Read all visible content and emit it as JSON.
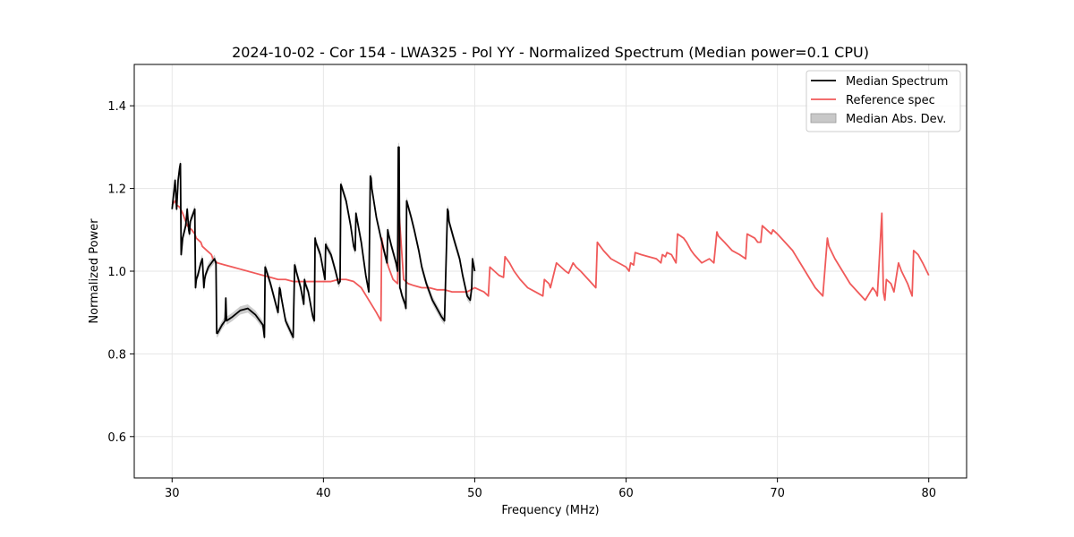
{
  "chart_data": {
    "type": "line",
    "title": "2024-10-02 - Cor 154 - LWA325 - Pol YY - Normalized Spectrum (Median power=0.1 CPU)",
    "xlabel": "Frequency (MHz)",
    "ylabel": "Normalized Power",
    "xlim": [
      27.5,
      82.5
    ],
    "ylim": [
      0.5,
      1.5
    ],
    "xticks": [
      30,
      40,
      50,
      60,
      70,
      80
    ],
    "yticks": [
      0.6,
      0.8,
      1.0,
      1.2,
      1.4
    ],
    "xtick_labels": [
      "30",
      "40",
      "50",
      "60",
      "70",
      "80"
    ],
    "ytick_labels": [
      "0.6",
      "0.8",
      "1.0",
      "1.2",
      "1.4"
    ],
    "grid": true,
    "legend_position": "top-right",
    "colors": {
      "median": "#000000",
      "reference": "#f05a5a",
      "mad": "#c8c8c8"
    },
    "series": [
      {
        "name": "Median Spectrum",
        "x": [
          30.0,
          30.2,
          30.3,
          30.4,
          30.5,
          30.55,
          30.6,
          30.7,
          30.9,
          31.0,
          31.1,
          31.15,
          31.2,
          31.3,
          31.5,
          31.55,
          31.6,
          31.7,
          31.9,
          32.0,
          32.1,
          32.15,
          32.2,
          32.4,
          32.6,
          32.8,
          32.9,
          32.95,
          33.0,
          33.3,
          33.5,
          33.55,
          33.6,
          34.0,
          34.5,
          35.0,
          35.5,
          36.0,
          36.1,
          36.15,
          36.2,
          36.5,
          37.0,
          37.1,
          37.15,
          37.2,
          37.5,
          38.0,
          38.1,
          38.15,
          38.2,
          38.5,
          38.7,
          38.75,
          38.8,
          39.0,
          39.3,
          39.4,
          39.45,
          39.5,
          39.8,
          40.0,
          40.1,
          40.15,
          40.2,
          40.5,
          40.8,
          41.0,
          41.1,
          41.15,
          41.2,
          41.5,
          41.8,
          42.0,
          42.1,
          42.15,
          42.2,
          42.5,
          42.8,
          43.0,
          43.1,
          43.15,
          43.2,
          43.5,
          43.8,
          44.0,
          44.2,
          44.25,
          44.3,
          44.5,
          44.8,
          44.9,
          44.95,
          45.0,
          45.05,
          45.1,
          45.2,
          45.4,
          45.45,
          45.5,
          45.8,
          46.0,
          46.3,
          46.5,
          46.8,
          47.0,
          47.2,
          47.5,
          47.8,
          48.0,
          48.2,
          48.25,
          48.3,
          48.6,
          49.0,
          49.2,
          49.5,
          49.7,
          49.8,
          49.85,
          49.9,
          50.0
        ],
        "values": [
          1.15,
          1.22,
          1.15,
          1.22,
          1.25,
          1.26,
          1.04,
          1.08,
          1.11,
          1.15,
          1.1,
          1.09,
          1.12,
          1.13,
          1.15,
          0.96,
          0.98,
          0.99,
          1.02,
          1.03,
          0.96,
          0.98,
          0.99,
          1.01,
          1.02,
          1.03,
          1.02,
          0.85,
          0.85,
          0.87,
          0.88,
          0.935,
          0.88,
          0.89,
          0.905,
          0.91,
          0.895,
          0.87,
          0.84,
          1.01,
          1.005,
          0.97,
          0.9,
          0.96,
          0.955,
          0.94,
          0.88,
          0.84,
          1.015,
          1.01,
          1.0,
          0.96,
          0.92,
          0.98,
          0.97,
          0.95,
          0.89,
          0.88,
          1.08,
          1.07,
          1.04,
          1.0,
          0.98,
          1.065,
          1.06,
          1.04,
          1.0,
          0.97,
          0.975,
          1.21,
          1.205,
          1.17,
          1.11,
          1.06,
          1.05,
          1.14,
          1.13,
          1.07,
          0.99,
          0.95,
          1.23,
          1.225,
          1.2,
          1.13,
          1.08,
          1.05,
          1.02,
          1.1,
          1.09,
          1.06,
          1.02,
          1.0,
          1.3,
          1.3,
          0.96,
          0.955,
          0.94,
          0.92,
          0.91,
          1.17,
          1.13,
          1.1,
          1.05,
          1.01,
          0.97,
          0.95,
          0.93,
          0.91,
          0.89,
          0.88,
          1.15,
          1.145,
          1.12,
          1.08,
          1.03,
          0.99,
          0.94,
          0.93,
          0.96,
          1.03,
          1.02,
          1.0
        ]
      },
      {
        "name": "Reference spec",
        "x": [
          30.0,
          30.2,
          30.3,
          30.5,
          30.7,
          30.9,
          31.0,
          31.3,
          31.5,
          31.6,
          31.9,
          32.0,
          32.3,
          32.6,
          32.7,
          33.0,
          33.5,
          34.0,
          34.5,
          35.0,
          35.5,
          36.0,
          36.5,
          37.0,
          37.5,
          38.0,
          38.5,
          39.0,
          39.5,
          40.0,
          40.5,
          41.0,
          41.5,
          42.0,
          42.5,
          43.0,
          43.5,
          43.8,
          43.85,
          44.0,
          44.3,
          44.6,
          44.9,
          45.0,
          45.3,
          45.6,
          46.0,
          46.5,
          47.0,
          47.5,
          48.0,
          48.5,
          49.0,
          49.5,
          50.0,
          50.3,
          50.6,
          50.9,
          51.0,
          51.3,
          51.6,
          51.9,
          52.0,
          52.3,
          52.6,
          53.0,
          53.5,
          54.0,
          54.5,
          54.6,
          54.9,
          55.0,
          55.4,
          55.7,
          56.0,
          56.2,
          56.5,
          56.7,
          57.0,
          57.5,
          58.0,
          58.1,
          58.5,
          59.0,
          59.5,
          60.0,
          60.2,
          60.3,
          60.5,
          60.6,
          61.0,
          61.5,
          62.0,
          62.3,
          62.4,
          62.6,
          62.7,
          63.0,
          63.3,
          63.4,
          63.8,
          64.0,
          64.3,
          64.5,
          65.0,
          65.5,
          65.8,
          66.0,
          66.1,
          66.5,
          67.0,
          67.5,
          67.9,
          68.0,
          68.5,
          68.7,
          68.9,
          69.0,
          69.3,
          69.6,
          69.7,
          70.0,
          70.5,
          71.0,
          71.5,
          72.0,
          72.5,
          73.0,
          73.3,
          73.4,
          73.8,
          74.3,
          74.8,
          75.3,
          75.8,
          76.3,
          76.5,
          76.6,
          76.9,
          77.0,
          77.1,
          77.2,
          77.5,
          77.7,
          78.0,
          78.2,
          78.6,
          78.9,
          79.0,
          79.3,
          79.6,
          80.0
        ],
        "values": [
          1.16,
          1.17,
          1.16,
          1.155,
          1.14,
          1.12,
          1.11,
          1.1,
          1.09,
          1.08,
          1.07,
          1.06,
          1.05,
          1.04,
          1.03,
          1.02,
          1.015,
          1.01,
          1.005,
          1.0,
          0.995,
          0.99,
          0.985,
          0.98,
          0.98,
          0.975,
          0.975,
          0.975,
          0.975,
          0.975,
          0.975,
          0.98,
          0.98,
          0.975,
          0.96,
          0.93,
          0.9,
          0.88,
          1.08,
          1.05,
          1.01,
          0.98,
          0.97,
          1.14,
          0.98,
          0.97,
          0.965,
          0.96,
          0.96,
          0.955,
          0.955,
          0.95,
          0.95,
          0.95,
          0.96,
          0.955,
          0.95,
          0.94,
          1.01,
          1.0,
          0.99,
          0.985,
          1.035,
          1.02,
          1.0,
          0.98,
          0.96,
          0.95,
          0.94,
          0.98,
          0.97,
          0.96,
          1.02,
          1.01,
          1.0,
          0.995,
          1.02,
          1.01,
          1.0,
          0.98,
          0.96,
          1.07,
          1.05,
          1.03,
          1.02,
          1.01,
          1.0,
          1.02,
          1.015,
          1.045,
          1.04,
          1.035,
          1.03,
          1.02,
          1.04,
          1.035,
          1.045,
          1.04,
          1.02,
          1.09,
          1.08,
          1.07,
          1.05,
          1.04,
          1.02,
          1.03,
          1.02,
          1.095,
          1.085,
          1.07,
          1.05,
          1.04,
          1.03,
          1.09,
          1.08,
          1.07,
          1.07,
          1.11,
          1.1,
          1.09,
          1.1,
          1.09,
          1.07,
          1.05,
          1.02,
          0.99,
          0.96,
          0.94,
          1.08,
          1.06,
          1.03,
          1.0,
          0.97,
          0.95,
          0.93,
          0.96,
          0.95,
          0.94,
          1.14,
          0.95,
          0.93,
          0.98,
          0.97,
          0.95,
          1.02,
          1.0,
          0.97,
          0.94,
          1.05,
          1.04,
          1.02,
          0.99
        ]
      },
      {
        "name": "Median Abs. Dev.",
        "type": "band",
        "description_values": "narrow gray band around Median Spectrum",
        "half_width": 0.01
      }
    ],
    "legend": [
      "Median Spectrum",
      "Reference spec",
      "Median Abs. Dev."
    ]
  }
}
